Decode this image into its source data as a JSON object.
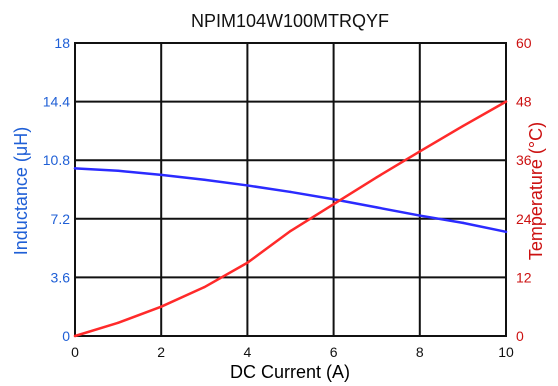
{
  "chart_data": {
    "type": "line",
    "title": "NPIM104W100MTRQYF",
    "xlabel": "DC Current (A)",
    "ylabel_left": "Inductance (μH)",
    "ylabel_right": "Temperature (°C)",
    "xlim": [
      0,
      10
    ],
    "ylim_left": [
      0,
      18
    ],
    "ylim_right": [
      0,
      60
    ],
    "xticks": [
      0,
      2,
      4,
      6,
      8,
      10
    ],
    "xtick_labels": [
      "0",
      "2",
      "4",
      "6",
      "8",
      "10"
    ],
    "yticks_left": [
      0,
      3.6,
      7.2,
      10.8,
      14.4,
      18
    ],
    "ytick_labels_left": [
      "0",
      "3.6",
      "7.2",
      "10.8",
      "14.4",
      "18"
    ],
    "yticks_right": [
      0,
      12,
      24,
      36,
      48,
      60
    ],
    "ytick_labels_right": [
      "0",
      "12",
      "24",
      "36",
      "48",
      "60"
    ],
    "grid": true,
    "series": [
      {
        "axis": "left",
        "color": "#2b2bff",
        "x": [
          0,
          1,
          2,
          3,
          4,
          5,
          6,
          7,
          8,
          9,
          10
        ],
        "values": [
          10.3,
          10.15,
          9.9,
          9.6,
          9.25,
          8.85,
          8.4,
          7.9,
          7.4,
          6.95,
          6.4
        ]
      },
      {
        "axis": "right",
        "color": "#ff2a2a",
        "x": [
          0,
          1,
          2,
          3,
          4,
          5,
          6,
          7,
          8,
          9,
          10
        ],
        "values": [
          0,
          2.7,
          6.0,
          10.0,
          15.0,
          21.5,
          27.0,
          32.5,
          37.8,
          43.0,
          48.0
        ]
      }
    ],
    "colors": {
      "left_axis": "#1f5fd6",
      "right_axis": "#cc1111",
      "grid": "#111111",
      "text": "#111111"
    }
  }
}
